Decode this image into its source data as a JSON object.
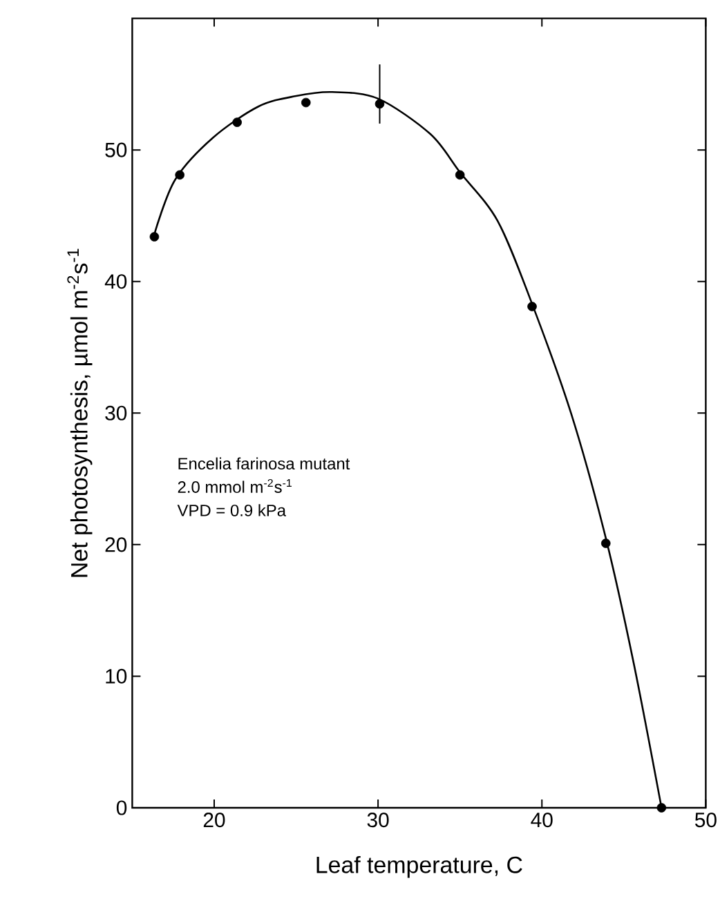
{
  "chart_data": {
    "type": "scatter",
    "xlabel": "Leaf temperature, C",
    "ylabel": "Net photosynthesis, µmol m$^{-2}$s$^{-1}$",
    "annotations": [
      "Encelia farinosa mutant",
      "2.0 mmol m$^{-2}$s$^{-1}$",
      "VPD = 0.9 kPa"
    ],
    "xlim": [
      15,
      50
    ],
    "ylim": [
      0,
      60
    ],
    "xticks": [
      20,
      30,
      40,
      50
    ],
    "yticks": [
      0,
      10,
      20,
      30,
      40,
      50
    ],
    "grid": false,
    "series": [
      {
        "marker": "circle",
        "color": "#000000",
        "x": [
          16.35,
          17.9,
          21.4,
          25.6,
          30.1,
          35.0,
          39.4,
          43.9,
          47.3
        ],
        "values": [
          43.4,
          48.1,
          52.1,
          53.6,
          53.5,
          48.1,
          38.1,
          20.1,
          0
        ],
        "errors": [
          null,
          null,
          null,
          null,
          [
            52.0,
            56.5
          ],
          null,
          null,
          null,
          null
        ]
      },
      {
        "type": "line",
        "color": "#000000",
        "marker": "none",
        "x": [
          16.35,
          17.6,
          19.9,
          22.7,
          25.0,
          27.2,
          30.0,
          33.2,
          35.0,
          37.3,
          39.4,
          41.8,
          43.9,
          45.6,
          47.3
        ],
        "values": [
          43.6,
          47.7,
          50.9,
          53.3,
          54.1,
          54.4,
          53.9,
          51.2,
          48.3,
          44.6,
          38.3,
          29.9,
          20.5,
          11.0,
          0
        ]
      }
    ]
  }
}
